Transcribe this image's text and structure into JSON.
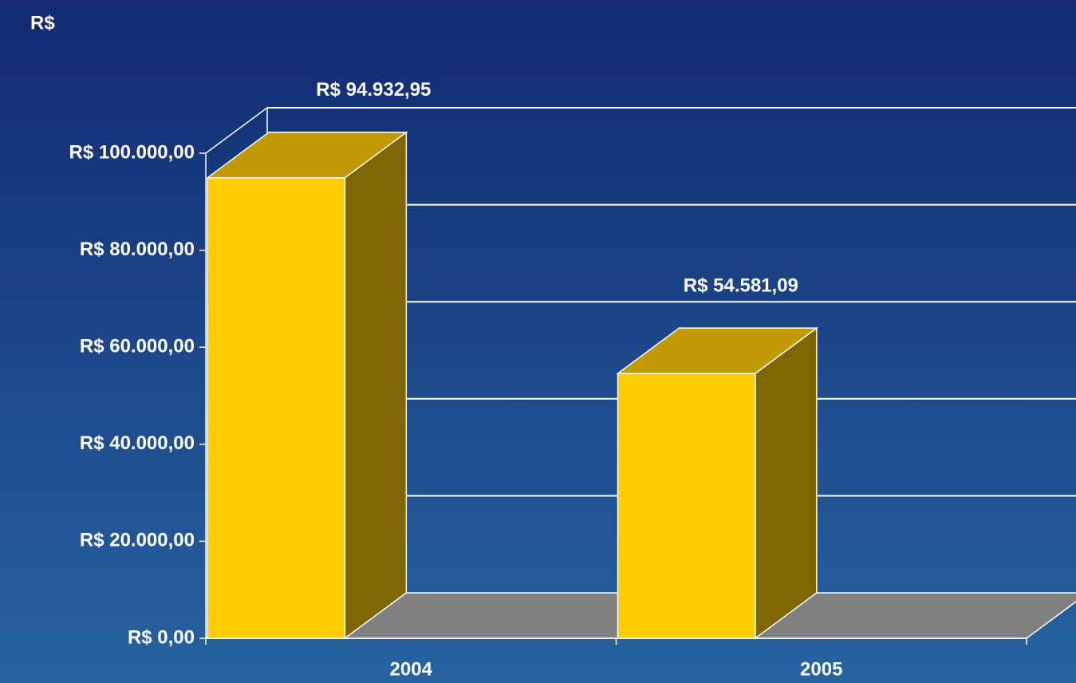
{
  "chart_data": {
    "type": "bar3d",
    "y_axis_label": "R$",
    "categories": [
      "2004",
      "2005"
    ],
    "values": [
      94932.95,
      54581.09
    ],
    "value_labels": [
      "R$ 94.932,95",
      "R$ 54.581,09"
    ],
    "color": "#ffcc00",
    "ylim": [
      0,
      100000
    ],
    "yticks": [
      {
        "value": 0,
        "label": "R$ 0,00"
      },
      {
        "value": 20000,
        "label": "R$ 20.000,00"
      },
      {
        "value": 40000,
        "label": "R$ 40.000,00"
      },
      {
        "value": 60000,
        "label": "R$ 60.000,00"
      },
      {
        "value": 80000,
        "label": "R$ 80.000,00"
      },
      {
        "value": 100000,
        "label": "R$ 100.000,00"
      }
    ],
    "grid": true
  }
}
